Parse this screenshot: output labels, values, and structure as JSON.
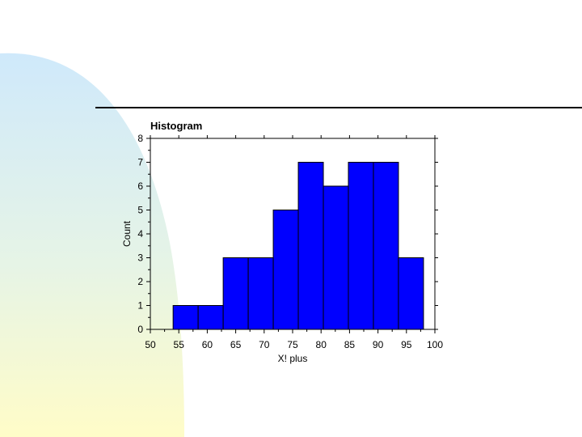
{
  "chart_data": {
    "type": "bar",
    "title": "Histogram",
    "xlabel": "X! plus",
    "ylabel": "Count",
    "xlim": [
      50,
      100
    ],
    "ylim": [
      0,
      8
    ],
    "x_ticks": [
      50,
      55,
      60,
      65,
      70,
      75,
      80,
      85,
      90,
      95,
      100
    ],
    "y_ticks": [
      0,
      1,
      2,
      3,
      4,
      5,
      6,
      7,
      8
    ],
    "bins": [
      {
        "start": 54,
        "end": 58.4,
        "count": 1
      },
      {
        "start": 58.4,
        "end": 62.8,
        "count": 1
      },
      {
        "start": 62.8,
        "end": 67.2,
        "count": 3
      },
      {
        "start": 67.2,
        "end": 71.6,
        "count": 3
      },
      {
        "start": 71.6,
        "end": 76.0,
        "count": 5
      },
      {
        "start": 76.0,
        "end": 80.4,
        "count": 7
      },
      {
        "start": 80.4,
        "end": 84.8,
        "count": 6
      },
      {
        "start": 84.8,
        "end": 89.2,
        "count": 7
      },
      {
        "start": 89.2,
        "end": 93.6,
        "count": 7
      },
      {
        "start": 93.6,
        "end": 98.0,
        "count": 3
      }
    ],
    "bar_color": "#0000ff",
    "grid": false
  }
}
